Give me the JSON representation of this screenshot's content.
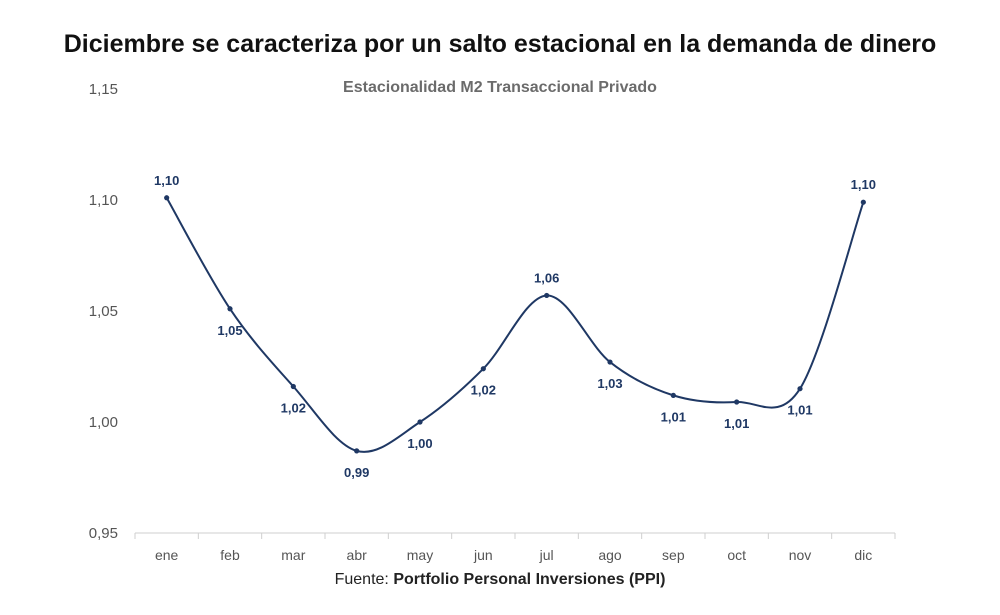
{
  "headline": "Diciembre se caracteriza por un salto estacional en la demanda de dinero",
  "source": {
    "label": "Fuente:",
    "name": "Portfolio Personal Inversiones (PPI)"
  },
  "chart_data": {
    "type": "line",
    "title": "Estacionalidad M2 Transaccional Privado",
    "xlabel": "",
    "ylabel": "",
    "categories": [
      "ene",
      "feb",
      "mar",
      "abr",
      "may",
      "jun",
      "jul",
      "ago",
      "sep",
      "oct",
      "nov",
      "dic"
    ],
    "series": [
      {
        "values": [
          1.101,
          1.051,
          1.016,
          0.987,
          1.0,
          1.024,
          1.057,
          1.027,
          1.012,
          1.009,
          1.015,
          1.099
        ],
        "labels": [
          "1,10",
          "1,05",
          "1,02",
          "0,99",
          "1,00",
          "1,02",
          "1,06",
          "1,03",
          "1,01",
          "1,01",
          "1,01",
          "1,10"
        ],
        "label_position": [
          "above",
          "below",
          "below",
          "below",
          "below",
          "below",
          "above",
          "below",
          "below",
          "below",
          "below",
          "above"
        ]
      }
    ],
    "ylim": [
      0.95,
      1.15
    ],
    "yticks": [
      0.95,
      1.0,
      1.05,
      1.1,
      1.15
    ],
    "ytick_labels": [
      "0,95",
      "1,00",
      "1,05",
      "1,10",
      "1,15"
    ],
    "grid": false,
    "legend": "none",
    "line_color": "#1f3864",
    "axis_color": "#cfcfcf"
  }
}
